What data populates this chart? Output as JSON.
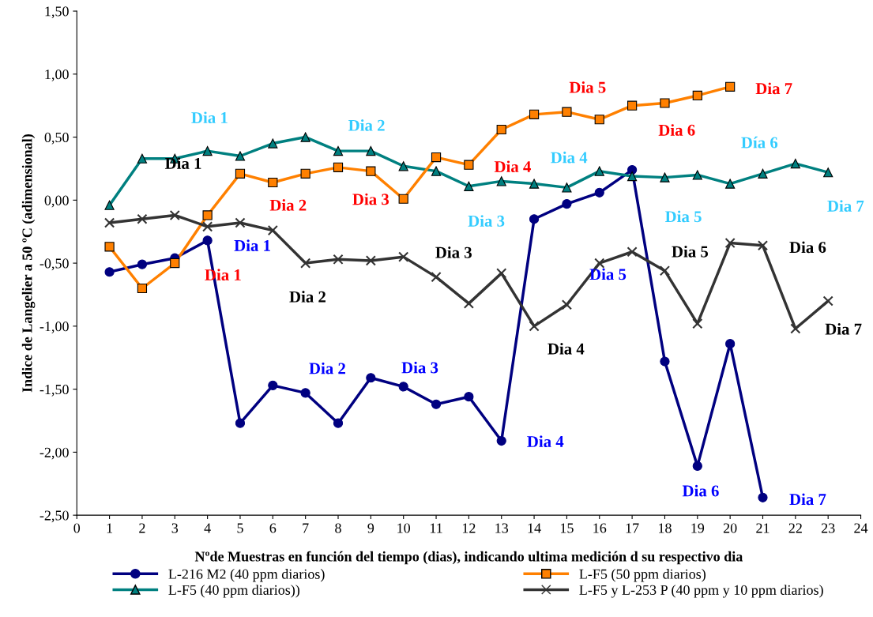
{
  "chart_data": {
    "type": "line",
    "xlabel": "Nºde Muestras en función del tiempo (dias), indicando ultima medición d su respectivo dia",
    "ylabel": "Indice de Langelier a 50 ºC (adimensional)",
    "xlim": [
      0,
      24
    ],
    "xticks": [
      0,
      1,
      2,
      3,
      4,
      5,
      6,
      7,
      8,
      9,
      10,
      11,
      12,
      13,
      14,
      15,
      16,
      17,
      18,
      19,
      20,
      21,
      22,
      23,
      24
    ],
    "ylim": [
      -2.5,
      1.5
    ],
    "yticks": [
      {
        "value": -2.5,
        "label": "-2,50"
      },
      {
        "value": -2.0,
        "label": "-2,00"
      },
      {
        "value": -1.5,
        "label": "-1,50"
      },
      {
        "value": -1.0,
        "label": "-1,00"
      },
      {
        "value": -0.5,
        "label": "-0,50"
      },
      {
        "value": 0.0,
        "label": "0,00"
      },
      {
        "value": 0.5,
        "label": "0,50"
      },
      {
        "value": 1.0,
        "label": "1,00"
      },
      {
        "value": 1.5,
        "label": "1,50"
      }
    ],
    "grid": false,
    "legend": "bottom",
    "series": [
      {
        "name": "L-216 M2 (40 ppm diarios)",
        "color": "#000080",
        "marker": "circle",
        "x": [
          1,
          2,
          3,
          4,
          5,
          6,
          7,
          8,
          9,
          10,
          11,
          12,
          13,
          14,
          15,
          16,
          17,
          18,
          19,
          20,
          21
        ],
        "values": [
          -0.57,
          -0.51,
          -0.46,
          -0.32,
          -1.77,
          -1.47,
          -1.53,
          -1.77,
          -1.41,
          -1.48,
          -1.62,
          -1.56,
          -1.91,
          -0.15,
          -0.03,
          0.06,
          0.24,
          -1.28,
          -2.11,
          -1.14,
          -2.36
        ]
      },
      {
        "name": "L-F5 (40 ppm diarios))",
        "color": "#008080",
        "marker": "triangle",
        "x": [
          1,
          2,
          3,
          4,
          5,
          6,
          7,
          8,
          9,
          10,
          11,
          12,
          13,
          14,
          15,
          16,
          17,
          18,
          19,
          20,
          21,
          22,
          23
        ],
        "values": [
          -0.04,
          0.33,
          0.33,
          0.39,
          0.35,
          0.45,
          0.5,
          0.39,
          0.39,
          0.27,
          0.23,
          0.11,
          0.15,
          0.13,
          0.1,
          0.23,
          0.19,
          0.18,
          0.2,
          0.13,
          0.21,
          0.29,
          0.22
        ]
      },
      {
        "name": "L-F5 (50 ppm diarios)",
        "color": "#ff8000",
        "marker": "square",
        "x": [
          1,
          2,
          3,
          4,
          5,
          6,
          7,
          8,
          9,
          10,
          11,
          12,
          13,
          14,
          15,
          16,
          17,
          18,
          19,
          20
        ],
        "values": [
          -0.37,
          -0.7,
          -0.5,
          -0.12,
          0.21,
          0.14,
          0.21,
          0.26,
          0.23,
          0.01,
          0.34,
          0.28,
          0.56,
          0.68,
          0.7,
          0.64,
          0.75,
          0.77,
          0.83,
          0.9
        ]
      },
      {
        "name": "L-F5 y L-253 P (40 ppm y 10 ppm diarios)",
        "color": "#333333",
        "marker": "cross",
        "x": [
          1,
          2,
          3,
          4,
          5,
          6,
          7,
          8,
          9,
          10,
          11,
          12,
          13,
          14,
          15,
          16,
          17,
          18,
          19,
          20,
          21,
          22,
          23
        ],
        "values": [
          -0.18,
          -0.15,
          -0.12,
          -0.21,
          -0.18,
          -0.24,
          -0.5,
          -0.47,
          -0.48,
          -0.45,
          -0.61,
          -0.82,
          -0.58,
          -1.0,
          -0.83,
          -0.5,
          -0.41,
          -0.56,
          -0.98,
          -0.34,
          -0.36,
          -1.02,
          -0.8
        ]
      }
    ],
    "annotations": [
      {
        "text": "Dia 1",
        "x": 3,
        "y": -0.5
      },
      {
        "text": "Dia 2",
        "x": 6,
        "y": 0.14
      },
      {
        "text": "Dia 3",
        "x": 9,
        "y": 0.23
      },
      {
        "text": "Dia 4",
        "x": 12,
        "y": 0.28
      },
      {
        "text": "Dia 5",
        "x": 15,
        "y": 0.7
      },
      {
        "text": "Dia 6",
        "x": 18,
        "y": 0.77
      },
      {
        "text": "Dia 7",
        "x": 20,
        "y": 0.9
      },
      {
        "text": "Dia 1",
        "x": 4,
        "y": 0.39
      },
      {
        "text": "Dia 2",
        "x": 8,
        "y": 0.39
      },
      {
        "text": "Dia 3",
        "x": 12,
        "y": 0.11
      },
      {
        "text": "Dia 4",
        "x": 15,
        "y": 0.1
      },
      {
        "text": "Dia 5",
        "x": 18,
        "y": 0.18
      },
      {
        "text": "Día 6",
        "x": 21,
        "y": 0.21
      },
      {
        "text": "Dia 7",
        "x": 23,
        "y": 0.22
      },
      {
        "text": "Dia 1",
        "x": 4,
        "y": -0.32
      },
      {
        "text": "Dia 2",
        "x": 7,
        "y": -1.53
      },
      {
        "text": "Dia 3",
        "x": 10,
        "y": -1.48
      },
      {
        "text": "Dia 4",
        "x": 13,
        "y": -1.91
      },
      "Dia 5",
      {
        "text": "Dia 6",
        "x": 19,
        "y": -2.11
      },
      {
        "text": "Dia 7",
        "x": 21,
        "y": -2.36
      },
      "Dia 1",
      {
        "text": "Dia 2",
        "x": 7,
        "y": -0.5
      },
      {
        "text": "Dia 3",
        "x": 11,
        "y": -0.61
      },
      {
        "text": "Dia 4",
        "x": 14,
        "y": -1.0
      },
      {
        "text": "Dia 5",
        "x": 18,
        "y": -0.56
      },
      {
        "text": "Dia 6",
        "x": 21,
        "y": -0.36
      },
      {
        "text": "Dia 7",
        "x": 23,
        "y": -0.8
      }
    ]
  }
}
